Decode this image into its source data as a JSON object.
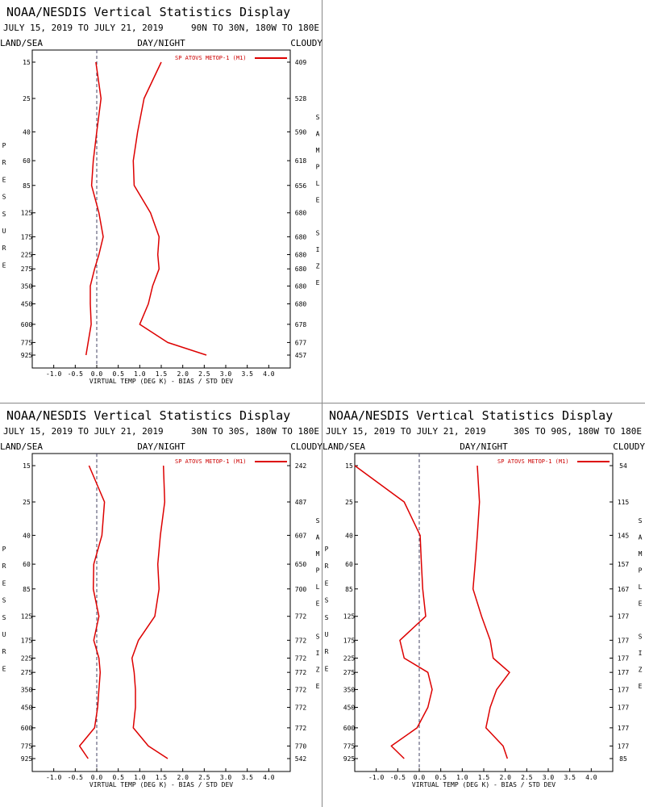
{
  "colors": {
    "series": "#dd0000",
    "zero_line": "#444466",
    "frame": "#000000"
  },
  "chart_data": [
    {
      "type": "line",
      "title": "NOAA/NESDIS Vertical Statistics Display",
      "dates": "JULY 15, 2019 TO JULY 21, 2019",
      "region": "90N TO 30N, 180W TO 180E",
      "flags": {
        "left": "LAND/SEA",
        "center": "DAY/NIGHT",
        "right": "CLOUDY"
      },
      "ylabel": "PRESSURE",
      "right_label": "SAMPLE SIZE",
      "xlabel": "VIRTUAL TEMP (DEG K) - BIAS / STD DEV",
      "xlim": [
        -1.5,
        4.5
      ],
      "xticks": [
        "-1.0",
        "-0.5",
        "0.0",
        "0.5",
        "1.0",
        "1.5",
        "2.0",
        "2.5",
        "3.0",
        "3.5",
        "4.0"
      ],
      "pressure_levels": [
        "15",
        "25",
        "40",
        "60",
        "85",
        "125",
        "175",
        "225",
        "275",
        "350",
        "450",
        "600",
        "775",
        "925"
      ],
      "sample_size": [
        "409",
        "528",
        "590",
        "618",
        "656",
        "680",
        "680",
        "680",
        "680",
        "680",
        "680",
        "678",
        "677",
        "457"
      ],
      "legend": "SP ATOVS METOP-1 (M1)",
      "series": [
        {
          "name": "bias",
          "values": [
            -0.02,
            0.1,
            0.0,
            -0.08,
            -0.12,
            0.05,
            0.15,
            0.05,
            -0.05,
            -0.15,
            -0.15,
            -0.13,
            -0.2,
            -0.25
          ]
        },
        {
          "name": "std dev",
          "values": [
            1.5,
            1.1,
            0.95,
            0.85,
            0.87,
            1.25,
            1.45,
            1.42,
            1.45,
            1.3,
            1.2,
            1.0,
            1.65,
            2.55
          ]
        }
      ]
    },
    {
      "type": "line",
      "title": "NOAA/NESDIS Vertical Statistics Display",
      "dates": "JULY 15, 2019 TO JULY 21, 2019",
      "region": "30N TO 30S, 180W TO 180E",
      "flags": {
        "left": "LAND/SEA",
        "center": "DAY/NIGHT",
        "right": "CLOUDY"
      },
      "ylabel": "PRESSURE",
      "right_label": "SAMPLE SIZE",
      "xlabel": "VIRTUAL TEMP (DEG K) - BIAS / STD DEV",
      "xlim": [
        -1.5,
        4.5
      ],
      "xticks": [
        "-1.0",
        "-0.5",
        "0.0",
        "0.5",
        "1.0",
        "1.5",
        "2.0",
        "2.5",
        "3.0",
        "3.5",
        "4.0"
      ],
      "pressure_levels": [
        "15",
        "25",
        "40",
        "60",
        "85",
        "125",
        "175",
        "225",
        "275",
        "350",
        "450",
        "600",
        "775",
        "925"
      ],
      "sample_size": [
        "242",
        "487",
        "607",
        "650",
        "700",
        "772",
        "772",
        "772",
        "772",
        "772",
        "772",
        "772",
        "770",
        "542"
      ],
      "legend": "SP ATOVS METOP-1 (M1)",
      "series": [
        {
          "name": "bias",
          "values": [
            -0.18,
            0.18,
            0.12,
            -0.07,
            -0.08,
            0.05,
            -0.07,
            0.05,
            0.08,
            0.05,
            0.02,
            -0.05,
            -0.4,
            -0.2
          ]
        },
        {
          "name": "std dev",
          "values": [
            1.55,
            1.58,
            1.48,
            1.42,
            1.45,
            1.35,
            0.97,
            0.82,
            0.87,
            0.9,
            0.9,
            0.85,
            1.2,
            1.65
          ]
        }
      ]
    },
    {
      "type": "line",
      "title": "NOAA/NESDIS Vertical Statistics Display",
      "dates": "JULY 15, 2019 TO JULY 21, 2019",
      "region": "30S TO 90S, 180W TO 180E",
      "flags": {
        "left": "LAND/SEA",
        "center": "DAY/NIGHT",
        "right": "CLOUDY"
      },
      "ylabel": "PRESSURE",
      "right_label": "SAMPLE SIZE",
      "xlabel": "VIRTUAL TEMP (DEG K) - BIAS / STD DEV",
      "xlim": [
        -1.5,
        4.5
      ],
      "xticks": [
        "-1.0",
        "-0.5",
        "0.0",
        "0.5",
        "1.0",
        "1.5",
        "2.0",
        "2.5",
        "3.0",
        "3.5",
        "4.0"
      ],
      "pressure_levels": [
        "15",
        "25",
        "40",
        "60",
        "85",
        "125",
        "175",
        "225",
        "275",
        "350",
        "450",
        "600",
        "775",
        "925"
      ],
      "sample_size": [
        "54",
        "115",
        "145",
        "157",
        "167",
        "177",
        "177",
        "177",
        "177",
        "177",
        "177",
        "177",
        "177",
        "85"
      ],
      "legend": "SP ATOVS METOP-1 (M1)",
      "series": [
        {
          "name": "bias",
          "values": [
            -1.5,
            -0.35,
            0.02,
            0.05,
            0.08,
            0.15,
            -0.45,
            -0.35,
            0.2,
            0.3,
            0.2,
            -0.05,
            -0.65,
            -0.35
          ]
        },
        {
          "name": "std dev",
          "values": [
            1.35,
            1.4,
            1.35,
            1.3,
            1.25,
            1.45,
            1.65,
            1.72,
            2.1,
            1.8,
            1.65,
            1.55,
            1.95,
            2.05
          ]
        }
      ]
    }
  ]
}
